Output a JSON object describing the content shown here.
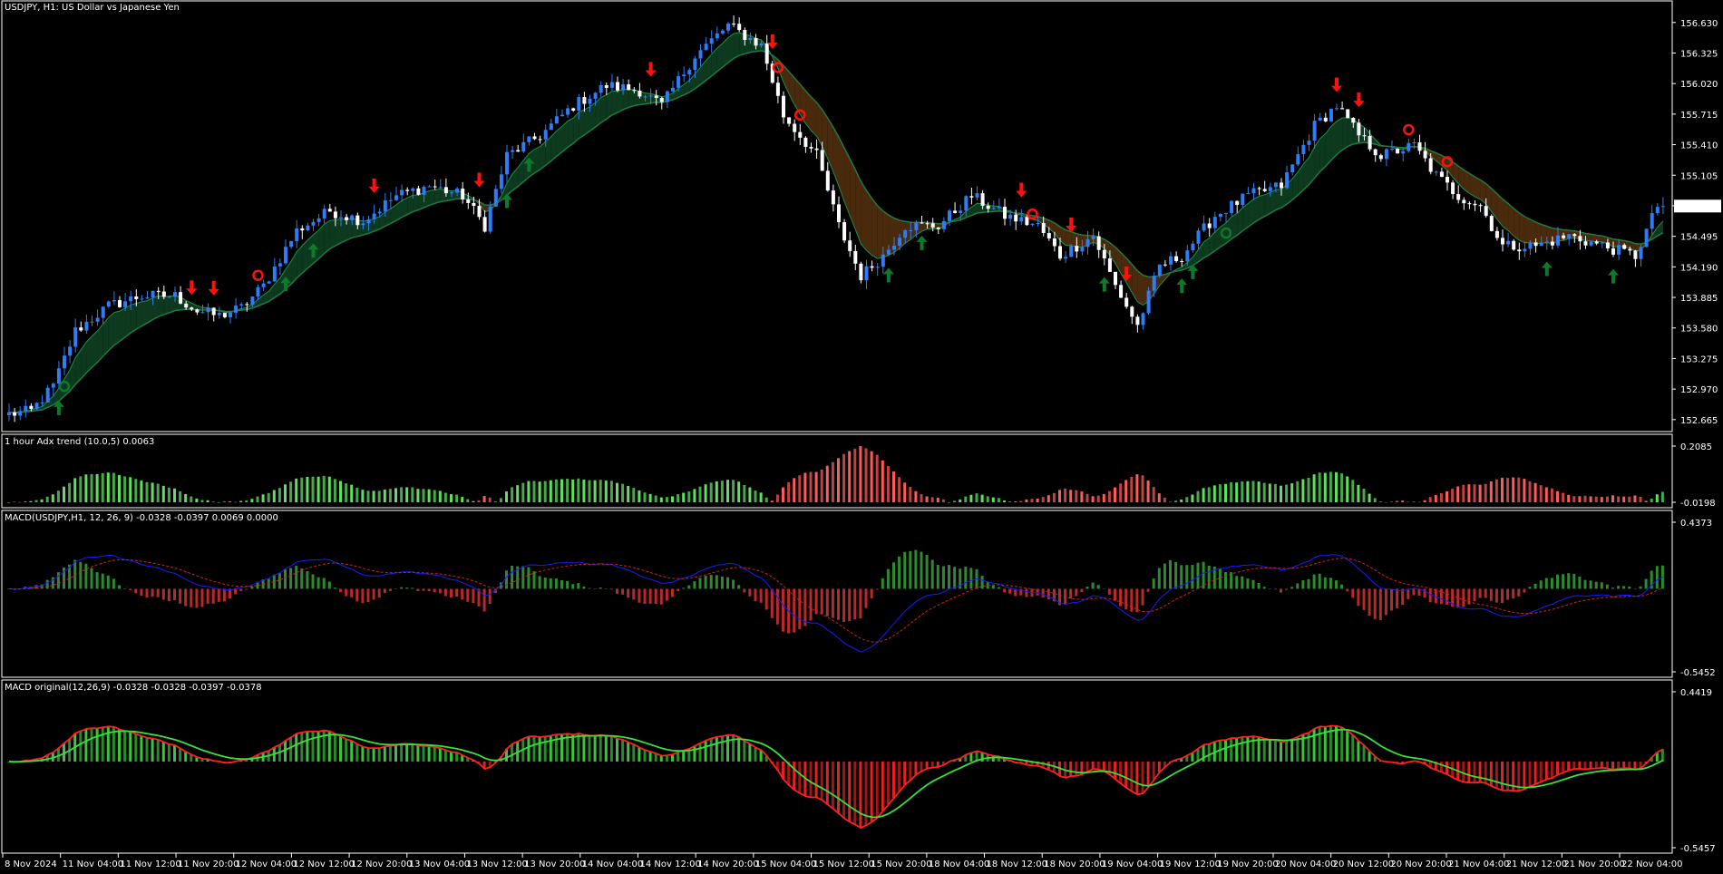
{
  "symbol_title": "USDJPY, H1:  US Dollar vs Japanese Yen",
  "panels": {
    "adx_title": "1 hour Adx trend (10.0,5) 0.0063",
    "macd1_title": "MACD(USDJPY,H1, 12, 26, 9) -0.0328 -0.0397 0.0069 0.0000",
    "macd2_title": "MACD original(12,26,9) -0.0328 -0.0328 -0.0397 -0.0378"
  },
  "colors": {
    "background": "#000000",
    "bull_candle": "#2f7cf6",
    "bear_candle": "#ffffff",
    "cloud_up": "#0d3a1f",
    "cloud_down": "#4a2a0c",
    "up_arrow": "#0b7a2a",
    "down_arrow": "#ff1010",
    "hist_green": "#39c539",
    "hist_red": "#e52020",
    "adx_green": "#5ee05e",
    "adx_red": "#ff5a5a",
    "macd_blue": "#1a1aff",
    "signal_red": "#d22020",
    "axis": "#ffffff"
  },
  "chart_data": [
    {
      "type": "candlestick",
      "title": "USDJPY, H1:  US Dollar vs Japanese Yen",
      "ylim": [
        152.6,
        156.8
      ],
      "y_ticks": [
        "156.630",
        "156.325",
        "156.020",
        "155.715",
        "155.410",
        "155.105",
        "154.800",
        "154.495",
        "154.190",
        "153.885",
        "153.580",
        "153.275",
        "152.970",
        "152.665"
      ],
      "x_ticks": [
        "8 Nov 2024",
        "11 Nov 04:00",
        "11 Nov 12:00",
        "11 Nov 20:00",
        "12 Nov 04:00",
        "12 Nov 12:00",
        "12 Nov 20:00",
        "13 Nov 04:00",
        "13 Nov 12:00",
        "13 Nov 20:00",
        "14 Nov 04:00",
        "14 Nov 12:00",
        "14 Nov 20:00",
        "15 Nov 04:00",
        "15 Nov 12:00",
        "15 Nov 20:00",
        "18 Nov 04:00",
        "18 Nov 12:00",
        "18 Nov 20:00",
        "19 Nov 04:00",
        "19 Nov 12:00",
        "19 Nov 20:00",
        "20 Nov 04:00",
        "20 Nov 12:00",
        "20 Nov 20:00",
        "21 Nov 04:00",
        "21 Nov 12:00",
        "21 Nov 20:00",
        "22 Nov 04:00"
      ],
      "close_path": [
        [
          0,
          152.72
        ],
        [
          4,
          152.75
        ],
        [
          8,
          153.0
        ],
        [
          12,
          153.55
        ],
        [
          18,
          153.8
        ],
        [
          24,
          153.9
        ],
        [
          30,
          153.9
        ],
        [
          34,
          153.75
        ],
        [
          38,
          153.7
        ],
        [
          42,
          153.78
        ],
        [
          46,
          154.0
        ],
        [
          52,
          154.55
        ],
        [
          58,
          154.75
        ],
        [
          64,
          154.65
        ],
        [
          70,
          154.9
        ],
        [
          76,
          155.0
        ],
        [
          82,
          154.9
        ],
        [
          86,
          154.6
        ],
        [
          90,
          155.3
        ],
        [
          96,
          155.5
        ],
        [
          102,
          155.8
        ],
        [
          108,
          156.0
        ],
        [
          114,
          155.95
        ],
        [
          118,
          155.8
        ],
        [
          124,
          156.3
        ],
        [
          130,
          156.6
        ],
        [
          136,
          156.4
        ],
        [
          140,
          155.7
        ],
        [
          146,
          155.3
        ],
        [
          150,
          154.6
        ],
        [
          154,
          154.1
        ],
        [
          158,
          154.3
        ],
        [
          162,
          154.6
        ],
        [
          168,
          154.6
        ],
        [
          174,
          154.9
        ],
        [
          180,
          154.7
        ],
        [
          186,
          154.6
        ],
        [
          190,
          154.3
        ],
        [
          196,
          154.5
        ],
        [
          200,
          154.0
        ],
        [
          204,
          153.6
        ],
        [
          208,
          154.2
        ],
        [
          212,
          154.3
        ],
        [
          218,
          154.7
        ],
        [
          224,
          154.9
        ],
        [
          230,
          155.0
        ],
        [
          236,
          155.6
        ],
        [
          240,
          155.8
        ],
        [
          244,
          155.5
        ],
        [
          248,
          155.3
        ],
        [
          254,
          155.4
        ],
        [
          258,
          155.1
        ],
        [
          262,
          154.9
        ],
        [
          266,
          154.8
        ],
        [
          270,
          154.4
        ],
        [
          276,
          154.4
        ],
        [
          282,
          154.5
        ],
        [
          288,
          154.4
        ],
        [
          294,
          154.3
        ],
        [
          298,
          154.8
        ]
      ],
      "up_arrows": [
        9,
        50,
        55,
        90,
        94,
        159,
        165,
        198,
        212,
        214,
        278,
        290
      ],
      "down_arrows": [
        33,
        37,
        66,
        85,
        116,
        138,
        183,
        192,
        202,
        240,
        244
      ],
      "circle_up": [
        10,
        220
      ],
      "circle_down": [
        45,
        139,
        143,
        185,
        253,
        260
      ]
    },
    {
      "type": "bar",
      "title": "1 hour Adx trend (10.0,5) 0.0063",
      "ylim": [
        -0.0198,
        0.2085
      ],
      "y_ticks": [
        "0.2085",
        "-0.0198"
      ]
    },
    {
      "type": "bar",
      "title": "MACD(USDJPY,H1, 12, 26, 9) -0.0328 -0.0397 0.0069 0.0000",
      "ylim": [
        -0.5452,
        0.4373
      ],
      "y_ticks": [
        "0.4373",
        "-0.5452"
      ],
      "series": [
        {
          "name": "",
          "values": []
        }
      ]
    },
    {
      "type": "bar",
      "title": "MACD original(12,26,9) -0.0328 -0.0328 -0.0397 -0.0378",
      "ylim": [
        -0.5457,
        0.4419
      ],
      "y_ticks": [
        "0.4419",
        "-0.5457"
      ]
    }
  ]
}
